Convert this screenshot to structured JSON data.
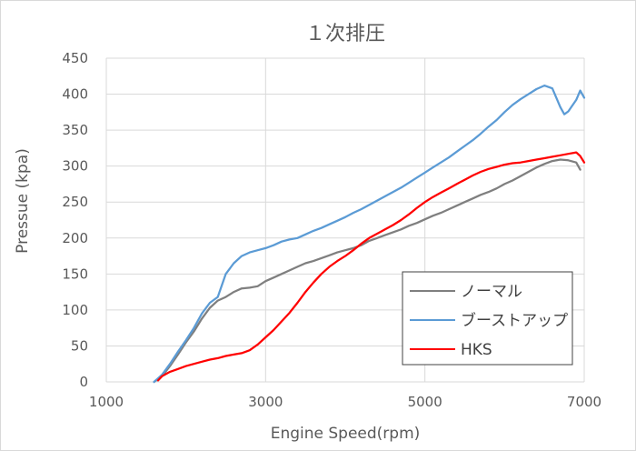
{
  "chart_data": {
    "type": "line",
    "title": "１次排圧",
    "xlabel": "Engine Speed(rpm)",
    "ylabel": "Pressue (kpa)",
    "xlim": [
      1000,
      7000
    ],
    "ylim": [
      0,
      450
    ],
    "xticks": [
      1000,
      3000,
      5000,
      7000
    ],
    "yticks": [
      0,
      50,
      100,
      150,
      200,
      250,
      300,
      350,
      400,
      450
    ],
    "grid": true,
    "legend_position": "bottom-right",
    "series": [
      {
        "name": "ノーマル",
        "color": "#7f7f7f",
        "points": [
          [
            1600,
            0
          ],
          [
            1700,
            8
          ],
          [
            1800,
            22
          ],
          [
            1900,
            38
          ],
          [
            2000,
            55
          ],
          [
            2100,
            70
          ],
          [
            2200,
            88
          ],
          [
            2300,
            103
          ],
          [
            2400,
            113
          ],
          [
            2500,
            118
          ],
          [
            2600,
            125
          ],
          [
            2700,
            130
          ],
          [
            2800,
            131
          ],
          [
            2900,
            133
          ],
          [
            3000,
            140
          ],
          [
            3100,
            145
          ],
          [
            3200,
            150
          ],
          [
            3300,
            155
          ],
          [
            3400,
            160
          ],
          [
            3500,
            165
          ],
          [
            3600,
            168
          ],
          [
            3700,
            172
          ],
          [
            3800,
            176
          ],
          [
            3900,
            180
          ],
          [
            4000,
            183
          ],
          [
            4100,
            186
          ],
          [
            4200,
            190
          ],
          [
            4300,
            196
          ],
          [
            4400,
            200
          ],
          [
            4500,
            204
          ],
          [
            4600,
            208
          ],
          [
            4700,
            212
          ],
          [
            4800,
            217
          ],
          [
            4900,
            221
          ],
          [
            5000,
            226
          ],
          [
            5100,
            231
          ],
          [
            5200,
            235
          ],
          [
            5300,
            240
          ],
          [
            5400,
            245
          ],
          [
            5500,
            250
          ],
          [
            5600,
            255
          ],
          [
            5700,
            260
          ],
          [
            5800,
            264
          ],
          [
            5900,
            269
          ],
          [
            6000,
            275
          ],
          [
            6100,
            280
          ],
          [
            6200,
            286
          ],
          [
            6300,
            292
          ],
          [
            6400,
            298
          ],
          [
            6500,
            303
          ],
          [
            6600,
            307
          ],
          [
            6700,
            309
          ],
          [
            6800,
            308
          ],
          [
            6900,
            305
          ],
          [
            6950,
            295
          ]
        ]
      },
      {
        "name": "ブーストアップ",
        "color": "#5b9bd5",
        "points": [
          [
            1600,
            0
          ],
          [
            1700,
            10
          ],
          [
            1800,
            25
          ],
          [
            1900,
            42
          ],
          [
            2000,
            58
          ],
          [
            2100,
            75
          ],
          [
            2200,
            95
          ],
          [
            2300,
            110
          ],
          [
            2400,
            118
          ],
          [
            2500,
            150
          ],
          [
            2600,
            165
          ],
          [
            2700,
            175
          ],
          [
            2800,
            180
          ],
          [
            2900,
            183
          ],
          [
            3000,
            186
          ],
          [
            3100,
            190
          ],
          [
            3200,
            195
          ],
          [
            3300,
            198
          ],
          [
            3400,
            200
          ],
          [
            3500,
            205
          ],
          [
            3600,
            210
          ],
          [
            3700,
            214
          ],
          [
            3800,
            219
          ],
          [
            3900,
            224
          ],
          [
            4000,
            229
          ],
          [
            4100,
            235
          ],
          [
            4200,
            240
          ],
          [
            4300,
            246
          ],
          [
            4400,
            252
          ],
          [
            4500,
            258
          ],
          [
            4600,
            264
          ],
          [
            4700,
            270
          ],
          [
            4800,
            277
          ],
          [
            4900,
            284
          ],
          [
            5000,
            291
          ],
          [
            5100,
            298
          ],
          [
            5200,
            305
          ],
          [
            5300,
            312
          ],
          [
            5400,
            320
          ],
          [
            5500,
            328
          ],
          [
            5600,
            336
          ],
          [
            5700,
            345
          ],
          [
            5800,
            355
          ],
          [
            5900,
            364
          ],
          [
            6000,
            375
          ],
          [
            6100,
            385
          ],
          [
            6200,
            393
          ],
          [
            6300,
            400
          ],
          [
            6400,
            407
          ],
          [
            6500,
            412
          ],
          [
            6600,
            408
          ],
          [
            6700,
            382
          ],
          [
            6750,
            372
          ],
          [
            6800,
            376
          ],
          [
            6900,
            392
          ],
          [
            6950,
            405
          ],
          [
            7000,
            395
          ]
        ]
      },
      {
        "name": "HKS",
        "color": "#ff0000",
        "points": [
          [
            1650,
            2
          ],
          [
            1700,
            8
          ],
          [
            1800,
            14
          ],
          [
            1900,
            18
          ],
          [
            2000,
            22
          ],
          [
            2100,
            25
          ],
          [
            2200,
            28
          ],
          [
            2300,
            31
          ],
          [
            2400,
            33
          ],
          [
            2500,
            36
          ],
          [
            2600,
            38
          ],
          [
            2700,
            40
          ],
          [
            2800,
            44
          ],
          [
            2900,
            52
          ],
          [
            3000,
            62
          ],
          [
            3100,
            72
          ],
          [
            3200,
            84
          ],
          [
            3300,
            96
          ],
          [
            3400,
            110
          ],
          [
            3500,
            125
          ],
          [
            3600,
            138
          ],
          [
            3700,
            150
          ],
          [
            3800,
            160
          ],
          [
            3900,
            168
          ],
          [
            4000,
            175
          ],
          [
            4100,
            183
          ],
          [
            4200,
            192
          ],
          [
            4300,
            200
          ],
          [
            4400,
            206
          ],
          [
            4500,
            212
          ],
          [
            4600,
            218
          ],
          [
            4700,
            225
          ],
          [
            4800,
            233
          ],
          [
            4900,
            242
          ],
          [
            5000,
            250
          ],
          [
            5100,
            257
          ],
          [
            5200,
            263
          ],
          [
            5300,
            269
          ],
          [
            5400,
            275
          ],
          [
            5500,
            281
          ],
          [
            5600,
            287
          ],
          [
            5700,
            292
          ],
          [
            5800,
            296
          ],
          [
            5900,
            299
          ],
          [
            6000,
            302
          ],
          [
            6100,
            304
          ],
          [
            6200,
            305
          ],
          [
            6300,
            307
          ],
          [
            6400,
            309
          ],
          [
            6500,
            311
          ],
          [
            6600,
            313
          ],
          [
            6700,
            315
          ],
          [
            6800,
            317
          ],
          [
            6900,
            319
          ],
          [
            6950,
            314
          ],
          [
            7000,
            305
          ]
        ]
      }
    ]
  }
}
